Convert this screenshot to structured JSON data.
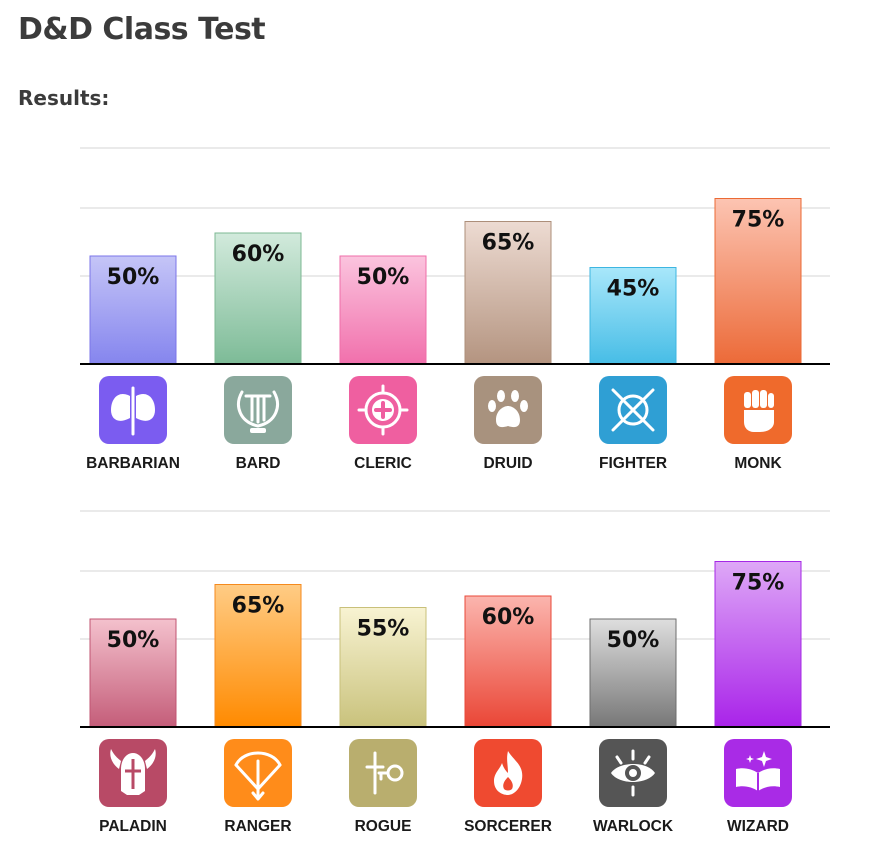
{
  "page": {
    "title": "D&D Class Test",
    "results_label": "Results:"
  },
  "chart_data": [
    {
      "type": "bar",
      "categories": [
        "BARBARIAN",
        "BARD",
        "CLERIC",
        "DRUID",
        "FIGHTER",
        "MONK"
      ],
      "values": [
        50,
        60,
        50,
        65,
        45,
        75
      ],
      "value_labels": [
        "50%",
        "60%",
        "50%",
        "65%",
        "45%",
        "75%"
      ],
      "ylim": [
        0,
        100
      ],
      "grid": true,
      "icons": [
        "double-axe-icon",
        "lyre-icon",
        "holy-cross-icon",
        "paw-icon",
        "crossed-swords-shield-icon",
        "fist-icon"
      ],
      "colors": [
        {
          "top": "#c5c5f7",
          "bottom": "#8585ee",
          "border": "#7b75e8",
          "icon": "#7b5cf0"
        },
        {
          "top": "#d2eadc",
          "bottom": "#7dbb97",
          "border": "#7db893",
          "icon": "#8aa89c"
        },
        {
          "top": "#fbc4de",
          "bottom": "#f170ac",
          "border": "#ef6ea8",
          "icon": "#ef5fa0"
        },
        {
          "top": "#eddbd2",
          "bottom": "#b49480",
          "border": "#ad8f7a",
          "icon": "#a8927e"
        },
        {
          "top": "#a8e7fa",
          "bottom": "#47bde6",
          "border": "#3db6e1",
          "icon": "#2f9fd4"
        },
        {
          "top": "#fcc4b2",
          "bottom": "#ec6a38",
          "border": "#eb6a35",
          "icon": "#ef6a2c"
        }
      ]
    },
    {
      "type": "bar",
      "categories": [
        "PALADIN",
        "RANGER",
        "ROGUE",
        "SORCERER",
        "WARLOCK",
        "WIZARD"
      ],
      "values": [
        50,
        65,
        55,
        60,
        50,
        75
      ],
      "value_labels": [
        "50%",
        "65%",
        "55%",
        "60%",
        "50%",
        "75%"
      ],
      "ylim": [
        0,
        100
      ],
      "grid": true,
      "icons": [
        "winged-helmet-icon",
        "bow-arrow-icon",
        "dagger-key-icon",
        "flame-icon",
        "eye-icon",
        "spellbook-icon"
      ],
      "colors": [
        {
          "top": "#f4c1cd",
          "bottom": "#c45d79",
          "border": "#c05472",
          "icon": "#b84a66"
        },
        {
          "top": "#ffcc85",
          "bottom": "#ff8a00",
          "border": "#f58a1e",
          "icon": "#ff8c1a"
        },
        {
          "top": "#f8f3d2",
          "bottom": "#c9c27c",
          "border": "#c8c07a",
          "icon": "#b9ae6e"
        },
        {
          "top": "#fbb5ae",
          "bottom": "#ea4636",
          "border": "#e8493a",
          "icon": "#ef4a30"
        },
        {
          "top": "#dedede",
          "bottom": "#777777",
          "border": "#6e6e6e",
          "icon": "#555555"
        },
        {
          "top": "#dea8f7",
          "bottom": "#a923e9",
          "border": "#a528e6",
          "icon": "#a92be6"
        }
      ]
    }
  ]
}
